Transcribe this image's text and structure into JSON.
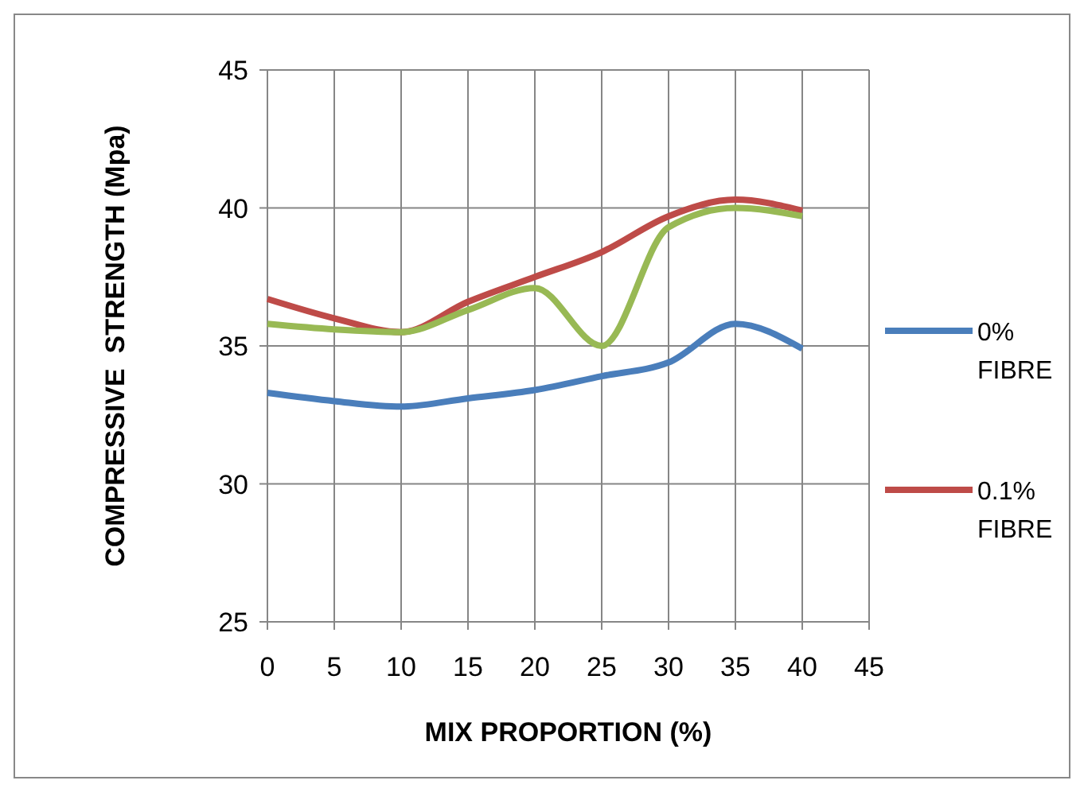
{
  "chart_data": {
    "type": "line",
    "xlabel": "MIX PROPORTION (%)",
    "ylabel": "COMPRESSIVE  STRENGTH (Mpa)",
    "x": [
      0,
      5,
      10,
      15,
      20,
      25,
      30,
      35,
      40
    ],
    "series": [
      {
        "name": "0% FIBRE",
        "color": "#4a7ebb",
        "values": [
          33.3,
          33.0,
          32.8,
          33.1,
          33.4,
          33.9,
          34.4,
          35.8,
          34.9
        ]
      },
      {
        "name": "0.1% FIBRE",
        "color": "#be4b48",
        "values": [
          36.7,
          36.0,
          35.5,
          36.6,
          37.5,
          38.4,
          39.7,
          40.3,
          39.9
        ]
      },
      {
        "color": "#98b954",
        "values": [
          35.8,
          35.6,
          35.5,
          36.3,
          37.1,
          35.0,
          39.3,
          40.0,
          39.7
        ]
      }
    ],
    "xlim": [
      0,
      45
    ],
    "xticks": [
      0,
      5,
      10,
      15,
      20,
      25,
      30,
      35,
      40,
      45
    ],
    "ylim": [
      25,
      45
    ],
    "yticks": [
      25,
      30,
      35,
      40,
      45
    ],
    "grid": true,
    "legend": "right",
    "marker": "none",
    "line_style": "solid"
  }
}
